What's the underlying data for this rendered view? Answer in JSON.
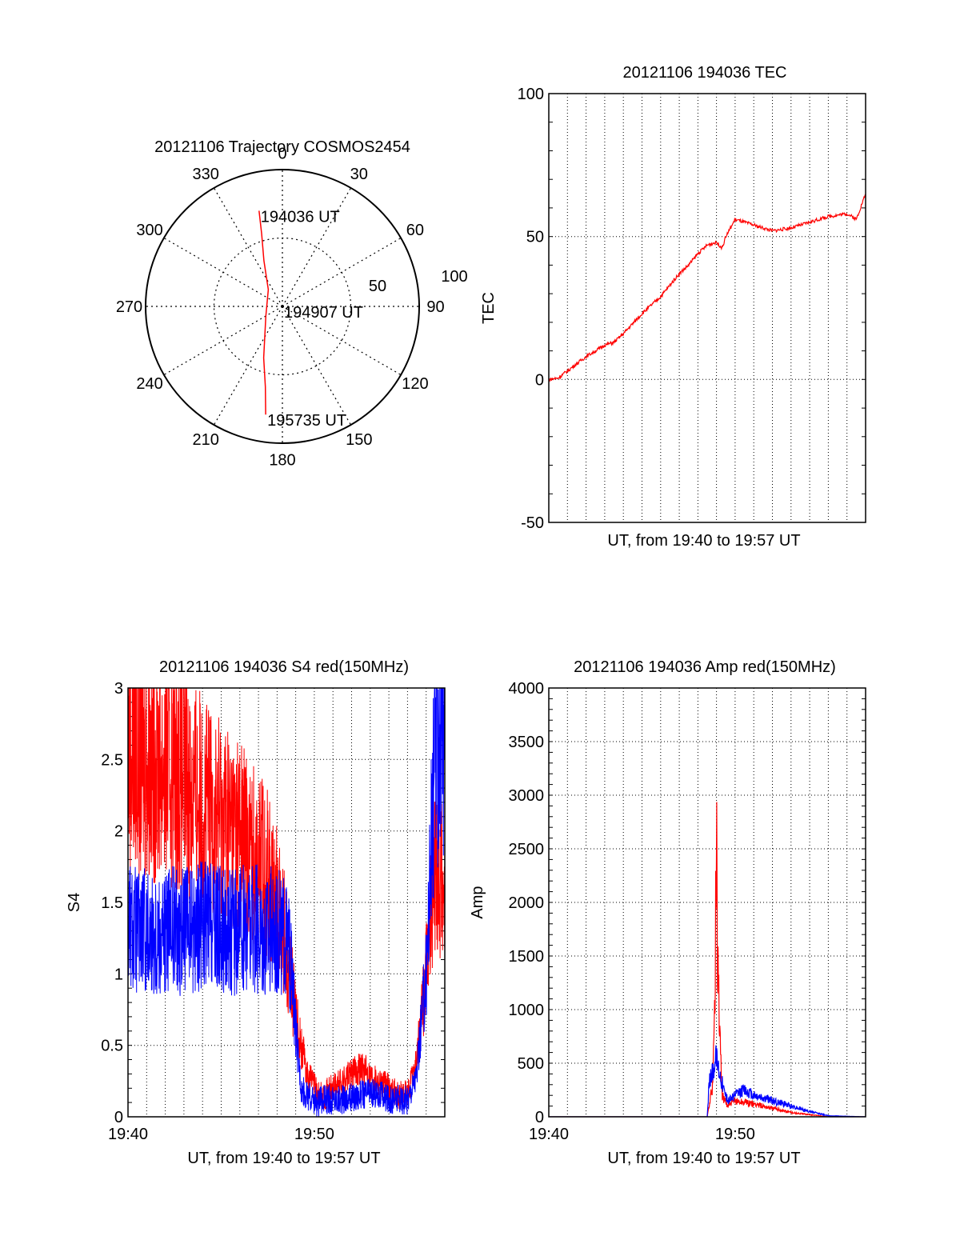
{
  "chart_data": [
    {
      "id": "trajectory",
      "type": "polar",
      "title": "20121106 Trajectory COSMOS2454",
      "angle_labels": [
        "0",
        "30",
        "60",
        "90",
        "120",
        "150",
        "180",
        "210",
        "240",
        "270",
        "300",
        "330"
      ],
      "radius_labels": [
        "50",
        "100"
      ],
      "trajectory": {
        "color": "#ff0000",
        "points": [
          {
            "az": 346.3,
            "r": 72.0
          },
          {
            "az": 344.0,
            "r": 55.0
          },
          {
            "az": 338.0,
            "r": 36.0
          },
          {
            "az": 320.0,
            "r": 16.0
          },
          {
            "az": 240.0,
            "r": 14.0
          },
          {
            "az": 200.0,
            "r": 40.0
          },
          {
            "az": 192.0,
            "r": 60.0
          },
          {
            "az": 188.8,
            "r": 80.0
          }
        ]
      },
      "annotations": [
        {
          "text": "194036 UT",
          "az": 346.3,
          "r": 72.0
        },
        {
          "text": "194907 UT",
          "az": 270.0,
          "r": 0.0
        },
        {
          "text": "195735 UT",
          "az": 188.8,
          "r": 80.0
        }
      ]
    },
    {
      "id": "tec",
      "type": "line",
      "title": "20121106 194036 TEC",
      "xlabel": "UT, from 19:40 to 19:57 UT",
      "ylabel": "TEC",
      "ylim": [
        -50,
        100
      ],
      "xlim_minutes": [
        0,
        17
      ],
      "yticks": [
        "-50",
        "0",
        "50",
        "100"
      ],
      "grid": true,
      "series": [
        {
          "color": "#ff0000",
          "x": [
            0.0,
            0.5,
            1.0,
            2.0,
            3.0,
            3.5,
            4.0,
            5.0,
            6.0,
            7.0,
            7.5,
            8.0,
            8.5,
            9.0,
            9.3,
            9.5,
            10.0,
            11.0,
            12.0,
            13.0,
            14.0,
            15.0,
            16.0,
            16.5,
            17.0
          ],
          "y": [
            0,
            0.5,
            3,
            8,
            12,
            13,
            16,
            23,
            29,
            37,
            40,
            44,
            47,
            48,
            46,
            50,
            56,
            54,
            52,
            53,
            55,
            57,
            58,
            56,
            65
          ]
        }
      ]
    },
    {
      "id": "s4",
      "type": "line",
      "title": "20121106 194036 S4 red(150MHz)",
      "xlabel": "UT, from 19:40 to 19:57 UT",
      "ylabel": "S4",
      "ylim": [
        0,
        3
      ],
      "xlim_minutes": [
        0,
        17
      ],
      "yticks": [
        "0",
        "0.5",
        "1",
        "1.5",
        "2",
        "2.5",
        "3"
      ],
      "xticks": [
        {
          "label": "19:40",
          "minute": 0
        },
        {
          "label": "19:50",
          "minute": 10
        }
      ],
      "grid": true,
      "series": [
        {
          "color": "#ff0000",
          "x": [
            0.0,
            1.0,
            2.0,
            3.0,
            4.0,
            5.0,
            6.0,
            6.5,
            7.0,
            7.5,
            8.0,
            8.4,
            8.7,
            9.0,
            9.3,
            9.6,
            9.9,
            10.2,
            10.5,
            11.0,
            11.5,
            12.0,
            12.5,
            13.0,
            13.5,
            14.0,
            14.5,
            15.0,
            15.5,
            16.0,
            16.5,
            17.0
          ],
          "y": [
            2.6,
            2.5,
            2.5,
            2.4,
            2.2,
            2.1,
            2.0,
            1.9,
            1.8,
            1.7,
            1.5,
            1.3,
            1.0,
            0.7,
            0.5,
            0.3,
            0.25,
            0.15,
            0.15,
            0.2,
            0.25,
            0.3,
            0.35,
            0.3,
            0.25,
            0.2,
            0.15,
            0.15,
            0.4,
            1.0,
            1.8,
            1.6
          ]
        },
        {
          "color": "#0000ff",
          "x": [
            0.0,
            1.0,
            2.0,
            3.0,
            4.0,
            5.0,
            6.0,
            6.5,
            7.0,
            7.5,
            8.0,
            8.4,
            8.7,
            9.0,
            9.3,
            9.6,
            9.9,
            10.2,
            10.5,
            11.0,
            11.5,
            12.0,
            12.5,
            13.0,
            13.5,
            14.0,
            14.5,
            15.0,
            15.5,
            16.0,
            16.5,
            17.0
          ],
          "y": [
            1.35,
            1.3,
            1.3,
            1.3,
            1.35,
            1.3,
            1.3,
            1.35,
            1.3,
            1.3,
            1.3,
            1.25,
            1.1,
            0.6,
            0.2,
            0.15,
            0.12,
            0.1,
            0.12,
            0.12,
            0.12,
            0.13,
            0.15,
            0.18,
            0.15,
            0.12,
            0.12,
            0.12,
            0.3,
            1.0,
            2.6,
            2.8
          ]
        }
      ]
    },
    {
      "id": "amp",
      "type": "line",
      "title": "20121106 194036 Amp red(150MHz)",
      "xlabel": "UT, from 19:40 to 19:57 UT",
      "ylabel": "Amp",
      "ylim": [
        0,
        4000
      ],
      "xlim_minutes": [
        0,
        17
      ],
      "yticks": [
        "0",
        "500",
        "1000",
        "1500",
        "2000",
        "2500",
        "3000",
        "3500",
        "4000"
      ],
      "xticks": [
        {
          "label": "19:40",
          "minute": 0
        },
        {
          "label": "19:50",
          "minute": 10
        }
      ],
      "grid": true,
      "series": [
        {
          "color": "#ff0000",
          "x": [
            0.0,
            8.5,
            8.6,
            8.8,
            8.9,
            9.0,
            9.05,
            9.1,
            9.2,
            9.3,
            9.6,
            10.0,
            11.0,
            12.0,
            13.0,
            14.0,
            15.0,
            17.0
          ],
          "y": [
            0,
            0,
            100,
            300,
            1000,
            2600,
            1500,
            1250,
            700,
            200,
            100,
            150,
            120,
            80,
            40,
            20,
            0,
            0
          ]
        },
        {
          "color": "#0000ff",
          "x": [
            0.0,
            8.5,
            8.6,
            8.8,
            9.0,
            9.2,
            9.4,
            9.6,
            10.0,
            10.5,
            11.0,
            12.0,
            13.0,
            14.0,
            15.0,
            17.0
          ],
          "y": [
            0,
            0,
            300,
            450,
            550,
            400,
            250,
            150,
            200,
            250,
            200,
            150,
            100,
            50,
            10,
            0
          ]
        }
      ]
    }
  ]
}
